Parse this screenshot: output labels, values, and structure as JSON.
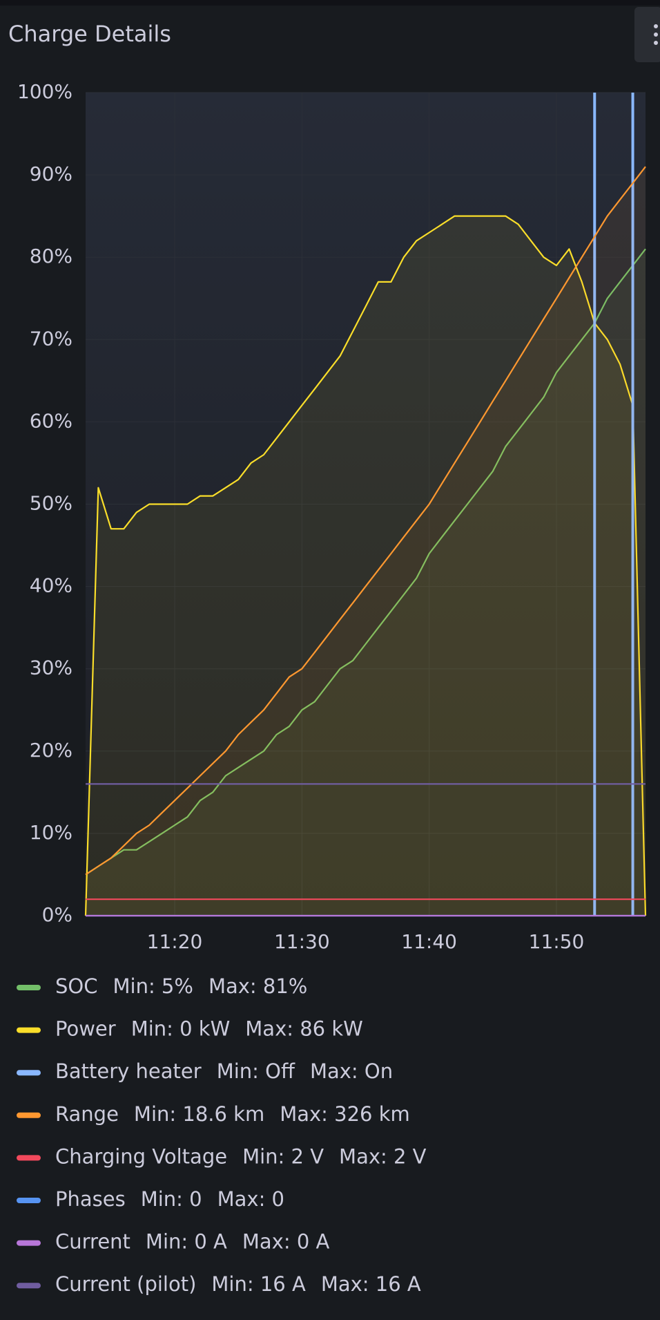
{
  "chart_data": {
    "type": "line",
    "title": "Charge Details",
    "x": [
      "11:13",
      "11:14",
      "11:15",
      "11:16",
      "11:17",
      "11:18",
      "11:19",
      "11:20",
      "11:21",
      "11:22",
      "11:23",
      "11:24",
      "11:25",
      "11:26",
      "11:27",
      "11:28",
      "11:29",
      "11:30",
      "11:31",
      "11:32",
      "11:33",
      "11:34",
      "11:35",
      "11:36",
      "11:37",
      "11:38",
      "11:39",
      "11:40",
      "11:41",
      "11:42",
      "11:43",
      "11:44",
      "11:45",
      "11:46",
      "11:47",
      "11:48",
      "11:49",
      "11:50",
      "11:51",
      "11:52",
      "11:53",
      "11:54",
      "11:55",
      "11:56",
      "11:57"
    ],
    "xlim": [
      "11:13",
      "11:57"
    ],
    "xticks": [
      "11:20",
      "11:30",
      "11:40",
      "11:50"
    ],
    "ylim": [
      0,
      100
    ],
    "yticks": [
      {
        "value": 0,
        "label": "0%"
      },
      {
        "value": 10,
        "label": "10%"
      },
      {
        "value": 20,
        "label": "20%"
      },
      {
        "value": 30,
        "label": "30%"
      },
      {
        "value": 40,
        "label": "40%"
      },
      {
        "value": 50,
        "label": "50%"
      },
      {
        "value": 60,
        "label": "60%"
      },
      {
        "value": 70,
        "label": "70%"
      },
      {
        "value": 80,
        "label": "80%"
      },
      {
        "value": 90,
        "label": "90%"
      },
      {
        "value": 100,
        "label": "100%"
      }
    ],
    "grid": true,
    "series": [
      {
        "name": "SOC",
        "color": "#73bf69",
        "fill": true,
        "legend_stats": [
          "Min: 5%",
          "Max: 81%"
        ],
        "values": [
          5,
          6,
          7,
          8,
          8,
          9,
          10,
          11,
          12,
          14,
          15,
          17,
          18,
          19,
          20,
          22,
          23,
          25,
          26,
          28,
          30,
          31,
          33,
          35,
          37,
          39,
          41,
          44,
          46,
          48,
          50,
          52,
          54,
          57,
          59,
          61,
          63,
          66,
          68,
          70,
          72,
          75,
          77,
          79,
          81
        ]
      },
      {
        "name": "Power",
        "color": "#fade2a",
        "fill": true,
        "legend_stats": [
          "Min: 0 kW",
          "Max: 86 kW"
        ],
        "values": [
          0,
          52,
          47,
          47,
          49,
          50,
          50,
          50,
          50,
          51,
          51,
          52,
          53,
          55,
          56,
          58,
          60,
          62,
          64,
          66,
          68,
          71,
          74,
          77,
          77,
          80,
          82,
          83,
          84,
          85,
          85,
          85,
          85,
          85,
          84,
          82,
          80,
          79,
          81,
          77,
          72,
          70,
          67,
          62,
          0
        ]
      },
      {
        "name": "Battery heater",
        "color": "#8ab8ff",
        "style": "bars",
        "legend_stats": [
          "Min: Off",
          "Max: On"
        ],
        "values": [
          null,
          null,
          null,
          null,
          null,
          null,
          null,
          null,
          null,
          null,
          null,
          null,
          null,
          null,
          null,
          null,
          null,
          null,
          null,
          null,
          null,
          null,
          null,
          null,
          null,
          null,
          null,
          null,
          null,
          null,
          null,
          null,
          null,
          null,
          null,
          null,
          null,
          null,
          null,
          null,
          100,
          null,
          null,
          100,
          null
        ]
      },
      {
        "name": "Range",
        "color": "#ff9830",
        "fill": true,
        "legend_stats": [
          "Min: 18.6 km",
          "Max: 326 km"
        ],
        "values": [
          5,
          6,
          7,
          8.5,
          10,
          11,
          12.5,
          14,
          15.5,
          17,
          18.5,
          20,
          22,
          23.5,
          25,
          27,
          29,
          30,
          32,
          34,
          36,
          38,
          40,
          42,
          44,
          46,
          48,
          50,
          52.5,
          55,
          57.5,
          60,
          62.5,
          65,
          67.5,
          70,
          72.5,
          75,
          77.5,
          80,
          82.5,
          85,
          87,
          89,
          91
        ]
      },
      {
        "name": "Charging Voltage",
        "color": "#f2495c",
        "legend_stats": [
          "Min: 2 V",
          "Max: 2 V"
        ],
        "values": [
          2,
          2,
          2,
          2,
          2,
          2,
          2,
          2,
          2,
          2,
          2,
          2,
          2,
          2,
          2,
          2,
          2,
          2,
          2,
          2,
          2,
          2,
          2,
          2,
          2,
          2,
          2,
          2,
          2,
          2,
          2,
          2,
          2,
          2,
          2,
          2,
          2,
          2,
          2,
          2,
          2,
          2,
          2,
          2,
          2
        ]
      },
      {
        "name": "Phases",
        "color": "#5794f2",
        "legend_stats": [
          "Min: 0",
          "Max: 0"
        ],
        "values": [
          0,
          0,
          0,
          0,
          0,
          0,
          0,
          0,
          0,
          0,
          0,
          0,
          0,
          0,
          0,
          0,
          0,
          0,
          0,
          0,
          0,
          0,
          0,
          0,
          0,
          0,
          0,
          0,
          0,
          0,
          0,
          0,
          0,
          0,
          0,
          0,
          0,
          0,
          0,
          0,
          0,
          0,
          0,
          0,
          0
        ]
      },
      {
        "name": "Current",
        "color": "#b877d9",
        "legend_stats": [
          "Min: 0 A",
          "Max: 0 A"
        ],
        "values": [
          0,
          0,
          0,
          0,
          0,
          0,
          0,
          0,
          0,
          0,
          0,
          0,
          0,
          0,
          0,
          0,
          0,
          0,
          0,
          0,
          0,
          0,
          0,
          0,
          0,
          0,
          0,
          0,
          0,
          0,
          0,
          0,
          0,
          0,
          0,
          0,
          0,
          0,
          0,
          0,
          0,
          0,
          0,
          0,
          0
        ]
      },
      {
        "name": "Current (pilot)",
        "color": "#705da0",
        "legend_stats": [
          "Min: 16 A",
          "Max: 16 A"
        ],
        "values": [
          16,
          16,
          16,
          16,
          16,
          16,
          16,
          16,
          16,
          16,
          16,
          16,
          16,
          16,
          16,
          16,
          16,
          16,
          16,
          16,
          16,
          16,
          16,
          16,
          16,
          16,
          16,
          16,
          16,
          16,
          16,
          16,
          16,
          16,
          16,
          16,
          16,
          16,
          16,
          16,
          16,
          16,
          16,
          16,
          16
        ]
      }
    ]
  }
}
